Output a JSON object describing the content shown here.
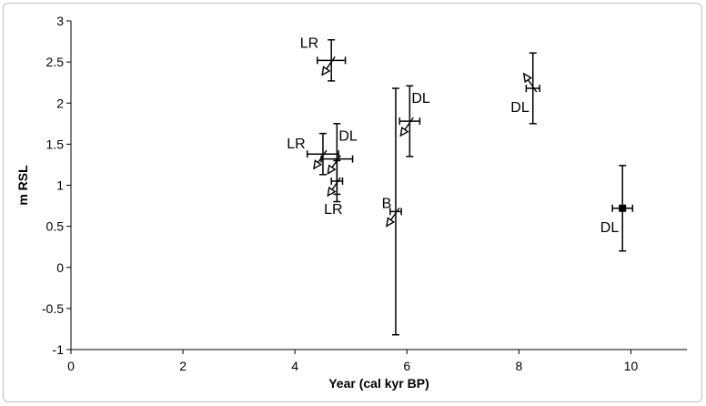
{
  "chart_data": {
    "type": "scatter",
    "title": "",
    "xlabel": "Year (cal kyr BP)",
    "ylabel": "m RSL",
    "xlim": [
      0,
      11
    ],
    "ylim": [
      -1,
      3
    ],
    "x_ticks": [
      "0",
      "2",
      "4",
      "6",
      "8",
      "10"
    ],
    "y_ticks": [
      "-1",
      "-0.5",
      "0",
      "0.5",
      "1",
      "1.5",
      "2",
      "2.5",
      "3"
    ],
    "grid": false,
    "legend": "none",
    "points": [
      {
        "label": "LR",
        "x": 4.65,
        "y": 2.52,
        "x_err": 0.25,
        "y_err": 0.25,
        "marker": "arrow-down-left",
        "label_pos": "left"
      },
      {
        "label": "LR",
        "x": 4.5,
        "y": 1.38,
        "x_err": 0.28,
        "y_err": 0.25,
        "marker": "arrow-down-left",
        "label_pos": "left"
      },
      {
        "label": "DL",
        "x": 4.75,
        "y": 1.32,
        "x_err": 0.28,
        "y_err": 0.43,
        "marker": "arrow-down-left",
        "label_pos": "upper-right"
      },
      {
        "label": "LR",
        "x": 4.75,
        "y": 1.05,
        "x_err": 0.1,
        "y_err": 0.25,
        "marker": "arrow-down-left",
        "label_pos": "below"
      },
      {
        "label": "B",
        "x": 5.8,
        "y": 0.68,
        "x_err": 0.1,
        "y_err": 1.5,
        "marker": "arrow-down-left",
        "label_pos": "upper-left"
      },
      {
        "label": "DL",
        "x": 6.05,
        "y": 1.78,
        "x_err": 0.18,
        "y_err": 0.43,
        "marker": "arrow-down-left",
        "label_pos": "upper-right"
      },
      {
        "label": "DL",
        "x": 8.25,
        "y": 2.18,
        "x_err": 0.12,
        "y_err": 0.43,
        "marker": "arrow-up-left",
        "label_pos": "lower-left"
      },
      {
        "label": "DL",
        "x": 9.85,
        "y": 0.72,
        "x_err": 0.18,
        "y_err": 0.52,
        "marker": "square",
        "label_pos": "lower-left"
      }
    ]
  }
}
